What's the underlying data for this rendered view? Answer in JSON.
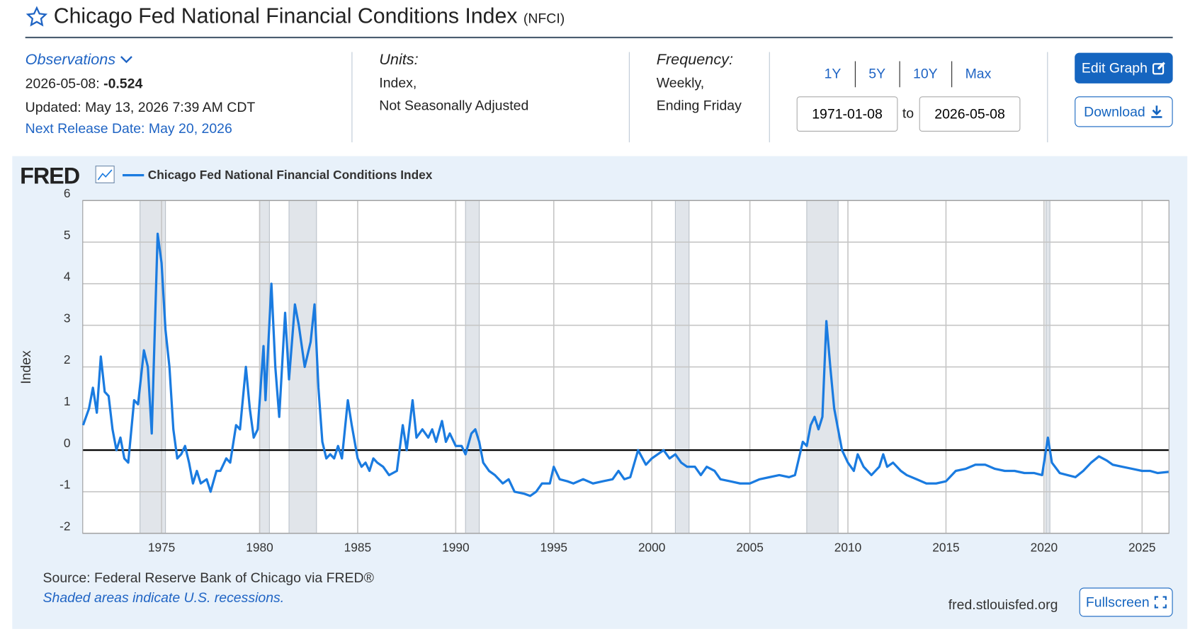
{
  "header": {
    "title": "Chicago Fed National Financial Conditions Index",
    "code": "(NFCI)"
  },
  "observations": {
    "label": "Observations",
    "date": "2026-05-08:",
    "value": "-0.524",
    "updated": "Updated: May 13, 2026 7:39 AM CDT",
    "next_release": "Next Release Date: May 20, 2026"
  },
  "units": {
    "label": "Units:",
    "lines": [
      "Index,",
      "Not Seasonally Adjusted"
    ]
  },
  "frequency": {
    "label": "Frequency:",
    "lines": [
      "Weekly,",
      "Ending Friday"
    ]
  },
  "ranges": [
    "1Y",
    "5Y",
    "10Y",
    "Max"
  ],
  "date_range": {
    "start": "1971-01-08",
    "to": "to",
    "end": "2026-05-08"
  },
  "buttons": {
    "edit": "Edit Graph",
    "download": "Download",
    "fullscreen": "Fullscreen"
  },
  "chart_data": {
    "type": "line",
    "logo": "FRED",
    "y_label": "Index",
    "series": [
      {
        "name": "Chicago Fed National Financial Conditions Index",
        "color": "#1a7be0",
        "values": [
          0.6,
          1.0,
          1.5,
          0.9,
          2.25,
          1.4,
          1.3,
          0.5,
          0.0,
          0.3,
          -0.2,
          -0.3,
          1.2,
          1.1,
          2.4,
          2.0,
          0.4,
          5.2,
          4.5,
          2.9,
          2.0,
          0.5,
          -0.2,
          -0.1,
          0.1,
          -0.3,
          -0.8,
          -0.5,
          -0.8,
          -0.7,
          -1.0,
          -0.5,
          -0.5,
          -0.2,
          -0.3,
          0.6,
          0.5,
          2.0,
          1.0,
          0.3,
          0.5,
          2.5,
          1.2,
          4.0,
          2.0,
          0.8,
          3.3,
          1.7,
          3.5,
          3.0,
          2.0,
          2.6,
          3.5,
          1.5,
          0.2,
          -0.2,
          -0.1,
          -0.2,
          0.1,
          -0.2,
          1.2,
          0.6,
          -0.2,
          -0.4,
          -0.3,
          -0.5,
          -0.2,
          -0.3,
          -0.4,
          -0.6,
          -0.5,
          0.6,
          0.0,
          1.2,
          0.3,
          0.5,
          0.3,
          0.5,
          0.2,
          0.7,
          0.2,
          0.4,
          0.1,
          0.1,
          -0.1,
          0.4,
          0.5,
          0.2,
          -0.3,
          -0.5,
          -0.6,
          -0.8,
          -0.7,
          -1.0,
          -1.05,
          -1.1,
          -1.0,
          -0.8,
          -0.8,
          -0.4,
          -0.7,
          -0.75,
          -0.8,
          -0.7,
          -0.8,
          -0.75,
          -0.7,
          -0.5,
          -0.7,
          -0.65,
          0.0,
          -0.35,
          -0.2,
          -0.1,
          0.0,
          -0.2,
          -0.1,
          -0.3,
          -0.4,
          -0.4,
          -0.6,
          -0.4,
          -0.5,
          -0.7,
          -0.75,
          -0.8,
          -0.8,
          -0.7,
          -0.65,
          -0.6,
          -0.65,
          -0.6,
          0.2,
          0.1,
          0.6,
          0.8,
          0.5,
          0.8,
          3.1,
          2.0,
          1.0,
          0.5,
          0.0,
          -0.3,
          -0.5,
          -0.1,
          -0.4,
          -0.6,
          -0.4,
          -0.1,
          -0.4,
          -0.3,
          -0.5,
          -0.6,
          -0.7,
          -0.8,
          -0.8,
          -0.75,
          -0.5,
          -0.45,
          -0.35,
          -0.35,
          -0.45,
          -0.5,
          -0.5,
          -0.55,
          -0.55,
          -0.6,
          0.3,
          -0.3,
          -0.55,
          -0.6,
          -0.65,
          -0.5,
          -0.3,
          -0.15,
          -0.25,
          -0.35,
          -0.4,
          -0.45,
          -0.5,
          -0.5,
          -0.55,
          -0.524
        ]
      }
    ],
    "x": [
      1971.0,
      1971.3,
      1971.5,
      1971.7,
      1971.9,
      1972.1,
      1972.3,
      1972.5,
      1972.7,
      1972.9,
      1973.1,
      1973.3,
      1973.6,
      1973.8,
      1974.1,
      1974.3,
      1974.5,
      1974.8,
      1975.0,
      1975.2,
      1975.4,
      1975.6,
      1975.8,
      1976.0,
      1976.2,
      1976.4,
      1976.6,
      1976.8,
      1977.0,
      1977.3,
      1977.5,
      1977.8,
      1978.0,
      1978.3,
      1978.5,
      1978.8,
      1979.0,
      1979.3,
      1979.5,
      1979.7,
      1979.9,
      1980.2,
      1980.3,
      1980.6,
      1980.8,
      1981.0,
      1981.3,
      1981.5,
      1981.8,
      1982.0,
      1982.3,
      1982.6,
      1982.8,
      1983.0,
      1983.2,
      1983.4,
      1983.6,
      1983.8,
      1984.0,
      1984.2,
      1984.5,
      1984.7,
      1985.0,
      1985.2,
      1985.4,
      1985.6,
      1985.8,
      1986.0,
      1986.3,
      1986.6,
      1987.0,
      1987.3,
      1987.5,
      1987.8,
      1988.0,
      1988.3,
      1988.6,
      1988.8,
      1989.0,
      1989.3,
      1989.5,
      1989.7,
      1990.0,
      1990.3,
      1990.5,
      1990.8,
      1991.0,
      1991.2,
      1991.4,
      1991.7,
      1992.0,
      1992.4,
      1992.7,
      1993.0,
      1993.5,
      1993.8,
      1994.1,
      1994.4,
      1994.8,
      1995.0,
      1995.3,
      1995.7,
      1996.0,
      1996.5,
      1997.0,
      1997.5,
      1998.0,
      1998.3,
      1998.6,
      1998.9,
      1999.3,
      1999.7,
      2000.0,
      2000.3,
      2000.6,
      2000.9,
      2001.2,
      2001.5,
      2001.8,
      2002.2,
      2002.5,
      2002.8,
      2003.2,
      2003.5,
      2004.0,
      2004.5,
      2005.0,
      2005.5,
      2006.0,
      2006.5,
      2007.0,
      2007.3,
      2007.7,
      2007.9,
      2008.1,
      2008.3,
      2008.5,
      2008.7,
      2008.9,
      2009.1,
      2009.3,
      2009.5,
      2009.7,
      2010.0,
      2010.3,
      2010.5,
      2010.8,
      2011.2,
      2011.6,
      2011.8,
      2012.0,
      2012.3,
      2012.7,
      2013.0,
      2013.5,
      2014.0,
      2014.5,
      2015.0,
      2015.5,
      2016.0,
      2016.5,
      2017.0,
      2017.5,
      2018.0,
      2018.5,
      2019.0,
      2019.5,
      2019.9,
      2020.2,
      2020.4,
      2020.8,
      2021.2,
      2021.6,
      2022.0,
      2022.4,
      2022.8,
      2023.2,
      2023.5,
      2024.0,
      2024.5,
      2025.0,
      2025.4,
      2025.8,
      2026.35
    ],
    "xlim": [
      1970.98,
      2026.37
    ],
    "xticks": [
      1975,
      1980,
      1985,
      1990,
      1995,
      2000,
      2005,
      2010,
      2015,
      2020,
      2025
    ],
    "ylim": [
      -2,
      6
    ],
    "yticks": [
      -2,
      -1,
      0,
      1,
      2,
      3,
      4,
      5,
      6
    ],
    "grid": true,
    "recessions": [
      [
        1973.9,
        1975.2
      ],
      [
        1980.0,
        1980.5
      ],
      [
        1981.5,
        1982.9
      ],
      [
        1990.5,
        1991.2
      ],
      [
        2001.2,
        2001.9
      ],
      [
        2007.9,
        2009.5
      ],
      [
        2020.1,
        2020.3
      ]
    ],
    "source": "Source: Federal Reserve Bank of Chicago via FRED®",
    "note": "Shaded areas indicate U.S. recessions.",
    "site": "fred.stlouisfed.org"
  }
}
